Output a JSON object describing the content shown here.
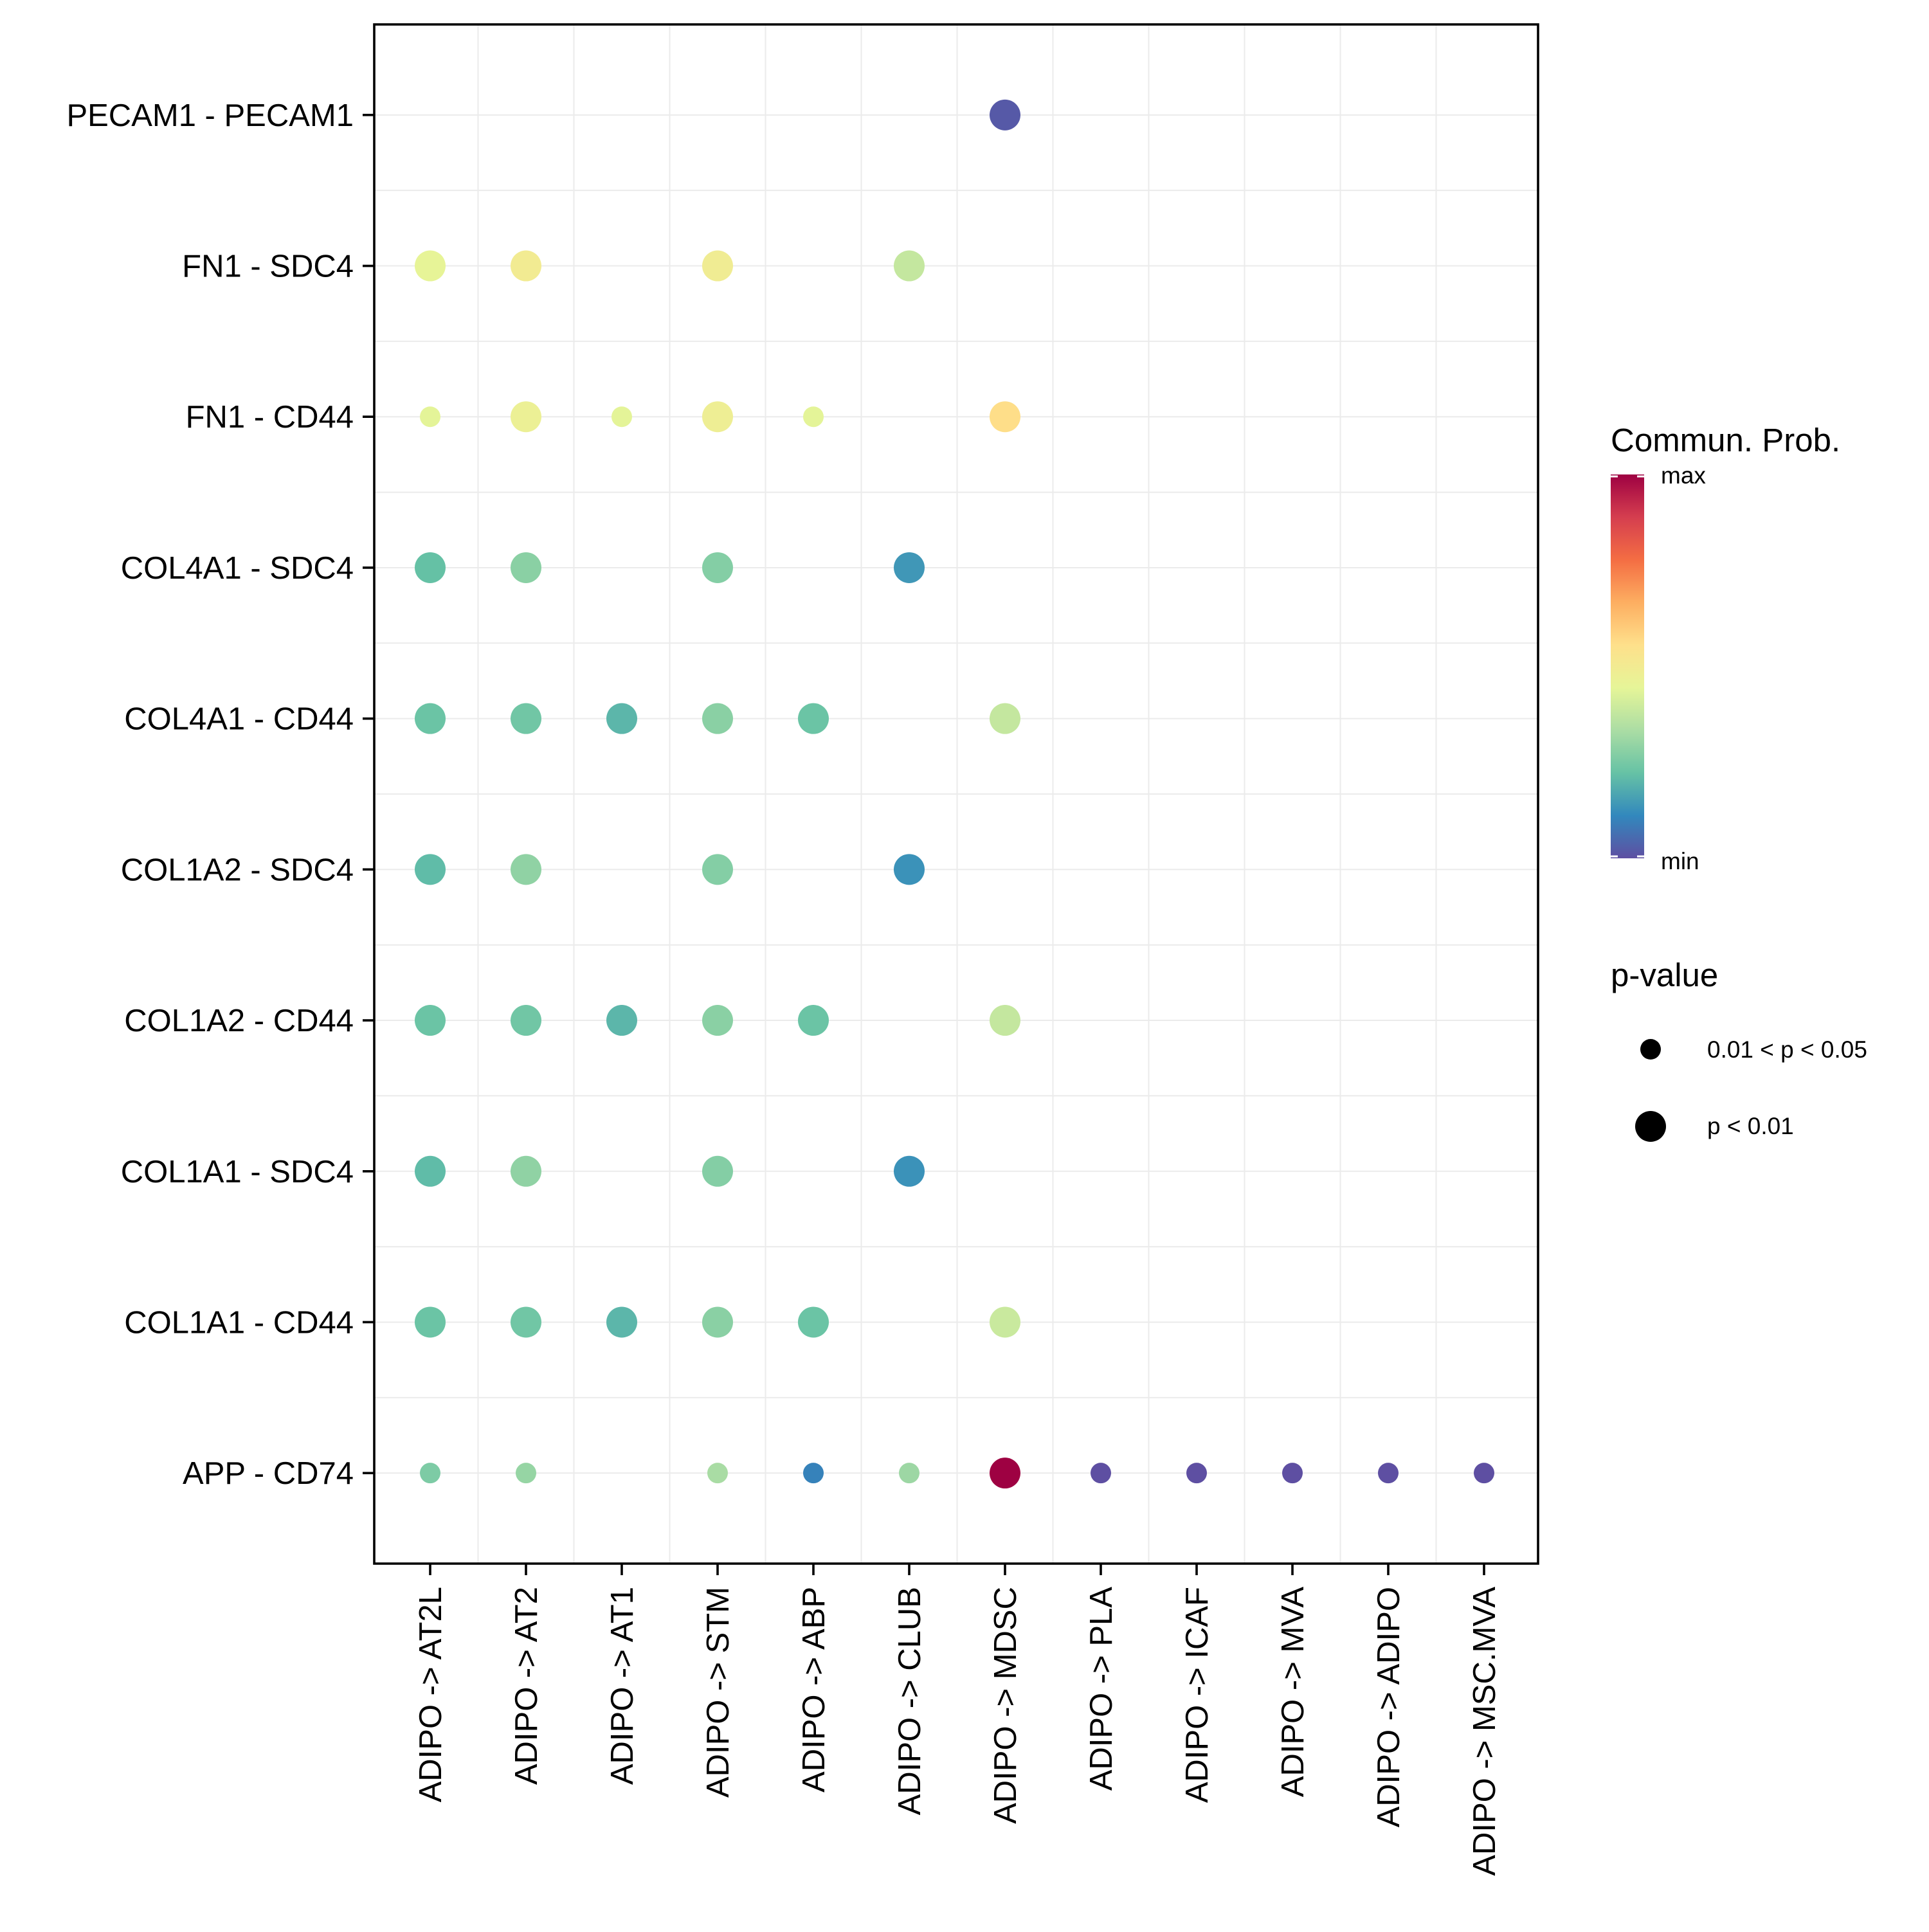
{
  "chart_data": {
    "type": "scatter",
    "subtype": "dot-plot",
    "title": "",
    "xlabel": "",
    "ylabel": "",
    "grid": true,
    "x_categories": [
      "ADIPO -> AT2L",
      "ADIPO -> AT2",
      "ADIPO -> AT1",
      "ADIPO -> STM",
      "ADIPO -> ABP",
      "ADIPO -> CLUB",
      "ADIPO -> MDSC",
      "ADIPO -> PLA",
      "ADIPO -> ICAF",
      "ADIPO -> MVA",
      "ADIPO -> ADIPO",
      "ADIPO -> MSC.MVA"
    ],
    "y_categories": [
      "PECAM1 - PECAM1",
      "FN1 - SDC4",
      "FN1 - CD44",
      "COL4A1 - SDC4",
      "COL4A1 - CD44",
      "COL1A2 - SDC4",
      "COL1A2 - CD44",
      "COL1A1 - SDC4",
      "COL1A1 - CD44",
      "APP - CD74"
    ],
    "points": [
      {
        "x": "ADIPO -> MDSC",
        "y": "PECAM1 - PECAM1",
        "prob": 0.02,
        "pval": "p < 0.01"
      },
      {
        "x": "ADIPO -> AT2L",
        "y": "FN1 - SDC4",
        "prob": 0.45,
        "pval": "p < 0.01"
      },
      {
        "x": "ADIPO -> AT2",
        "y": "FN1 - SDC4",
        "prob": 0.5,
        "pval": "p < 0.01"
      },
      {
        "x": "ADIPO -> STM",
        "y": "FN1 - SDC4",
        "prob": 0.49,
        "pval": "p < 0.01"
      },
      {
        "x": "ADIPO -> CLUB",
        "y": "FN1 - SDC4",
        "prob": 0.38,
        "pval": "p < 0.01"
      },
      {
        "x": "ADIPO -> AT2L",
        "y": "FN1 - CD44",
        "prob": 0.44,
        "pval": "0.01 < p < 0.05"
      },
      {
        "x": "ADIPO -> AT2",
        "y": "FN1 - CD44",
        "prob": 0.47,
        "pval": "p < 0.01"
      },
      {
        "x": "ADIPO -> AT1",
        "y": "FN1 - CD44",
        "prob": 0.44,
        "pval": "0.01 < p < 0.05"
      },
      {
        "x": "ADIPO -> STM",
        "y": "FN1 - CD44",
        "prob": 0.48,
        "pval": "p < 0.01"
      },
      {
        "x": "ADIPO -> ABP",
        "y": "FN1 - CD44",
        "prob": 0.44,
        "pval": "0.01 < p < 0.05"
      },
      {
        "x": "ADIPO -> MDSC",
        "y": "FN1 - CD44",
        "prob": 0.56,
        "pval": "p < 0.01"
      },
      {
        "x": "ADIPO -> AT2L",
        "y": "COL4A1 - SDC4",
        "prob": 0.22,
        "pval": "p < 0.01"
      },
      {
        "x": "ADIPO -> AT2",
        "y": "COL4A1 - SDC4",
        "prob": 0.28,
        "pval": "p < 0.01"
      },
      {
        "x": "ADIPO -> STM",
        "y": "COL4A1 - SDC4",
        "prob": 0.27,
        "pval": "p < 0.01"
      },
      {
        "x": "ADIPO -> CLUB",
        "y": "COL4A1 - SDC4",
        "prob": 0.14,
        "pval": "p < 0.01"
      },
      {
        "x": "ADIPO -> AT2L",
        "y": "COL4A1 - CD44",
        "prob": 0.23,
        "pval": "p < 0.01"
      },
      {
        "x": "ADIPO -> AT2",
        "y": "COL4A1 - CD44",
        "prob": 0.24,
        "pval": "p < 0.01"
      },
      {
        "x": "ADIPO -> AT1",
        "y": "COL4A1 - CD44",
        "prob": 0.2,
        "pval": "p < 0.01"
      },
      {
        "x": "ADIPO -> STM",
        "y": "COL4A1 - CD44",
        "prob": 0.28,
        "pval": "p < 0.01"
      },
      {
        "x": "ADIPO -> ABP",
        "y": "COL4A1 - CD44",
        "prob": 0.23,
        "pval": "p < 0.01"
      },
      {
        "x": "ADIPO -> MDSC",
        "y": "COL4A1 - CD44",
        "prob": 0.38,
        "pval": "p < 0.01"
      },
      {
        "x": "ADIPO -> AT2L",
        "y": "COL1A2 - SDC4",
        "prob": 0.21,
        "pval": "p < 0.01"
      },
      {
        "x": "ADIPO -> AT2",
        "y": "COL1A2 - SDC4",
        "prob": 0.29,
        "pval": "p < 0.01"
      },
      {
        "x": "ADIPO -> STM",
        "y": "COL1A2 - SDC4",
        "prob": 0.27,
        "pval": "p < 0.01"
      },
      {
        "x": "ADIPO -> CLUB",
        "y": "COL1A2 - SDC4",
        "prob": 0.13,
        "pval": "p < 0.01"
      },
      {
        "x": "ADIPO -> AT2L",
        "y": "COL1A2 - CD44",
        "prob": 0.23,
        "pval": "p < 0.01"
      },
      {
        "x": "ADIPO -> AT2",
        "y": "COL1A2 - CD44",
        "prob": 0.24,
        "pval": "p < 0.01"
      },
      {
        "x": "ADIPO -> AT1",
        "y": "COL1A2 - CD44",
        "prob": 0.2,
        "pval": "p < 0.01"
      },
      {
        "x": "ADIPO -> STM",
        "y": "COL1A2 - CD44",
        "prob": 0.28,
        "pval": "p < 0.01"
      },
      {
        "x": "ADIPO -> ABP",
        "y": "COL1A2 - CD44",
        "prob": 0.23,
        "pval": "p < 0.01"
      },
      {
        "x": "ADIPO -> MDSC",
        "y": "COL1A2 - CD44",
        "prob": 0.38,
        "pval": "p < 0.01"
      },
      {
        "x": "ADIPO -> AT2L",
        "y": "COL1A1 - SDC4",
        "prob": 0.21,
        "pval": "p < 0.01"
      },
      {
        "x": "ADIPO -> AT2",
        "y": "COL1A1 - SDC4",
        "prob": 0.29,
        "pval": "p < 0.01"
      },
      {
        "x": "ADIPO -> STM",
        "y": "COL1A1 - SDC4",
        "prob": 0.27,
        "pval": "p < 0.01"
      },
      {
        "x": "ADIPO -> CLUB",
        "y": "COL1A1 - SDC4",
        "prob": 0.13,
        "pval": "p < 0.01"
      },
      {
        "x": "ADIPO -> AT2L",
        "y": "COL1A1 - CD44",
        "prob": 0.23,
        "pval": "p < 0.01"
      },
      {
        "x": "ADIPO -> AT2",
        "y": "COL1A1 - CD44",
        "prob": 0.24,
        "pval": "p < 0.01"
      },
      {
        "x": "ADIPO -> AT1",
        "y": "COL1A1 - CD44",
        "prob": 0.2,
        "pval": "p < 0.01"
      },
      {
        "x": "ADIPO -> STM",
        "y": "COL1A1 - CD44",
        "prob": 0.28,
        "pval": "p < 0.01"
      },
      {
        "x": "ADIPO -> ABP",
        "y": "COL1A1 - CD44",
        "prob": 0.23,
        "pval": "p < 0.01"
      },
      {
        "x": "ADIPO -> MDSC",
        "y": "COL1A1 - CD44",
        "prob": 0.39,
        "pval": "p < 0.01"
      },
      {
        "x": "ADIPO -> AT2L",
        "y": "APP - CD74",
        "prob": 0.26,
        "pval": "0.01 < p < 0.05"
      },
      {
        "x": "ADIPO -> AT2",
        "y": "APP - CD74",
        "prob": 0.3,
        "pval": "0.01 < p < 0.05"
      },
      {
        "x": "ADIPO -> STM",
        "y": "APP - CD74",
        "prob": 0.33,
        "pval": "0.01 < p < 0.05"
      },
      {
        "x": "ADIPO -> ABP",
        "y": "APP - CD74",
        "prob": 0.1,
        "pval": "0.01 < p < 0.05"
      },
      {
        "x": "ADIPO -> CLUB",
        "y": "APP - CD74",
        "prob": 0.31,
        "pval": "0.01 < p < 0.05"
      },
      {
        "x": "ADIPO -> MDSC",
        "y": "APP - CD74",
        "prob": 1.0,
        "pval": "p < 0.01"
      },
      {
        "x": "ADIPO -> PLA",
        "y": "APP - CD74",
        "prob": 0.0,
        "pval": "0.01 < p < 0.05"
      },
      {
        "x": "ADIPO -> ICAF",
        "y": "APP - CD74",
        "prob": 0.0,
        "pval": "0.01 < p < 0.05"
      },
      {
        "x": "ADIPO -> MVA",
        "y": "APP - CD74",
        "prob": 0.0,
        "pval": "0.01 < p < 0.05"
      },
      {
        "x": "ADIPO -> ADIPO",
        "y": "APP - CD74",
        "prob": 0.0,
        "pval": "0.01 < p < 0.05"
      },
      {
        "x": "ADIPO -> MSC.MVA",
        "y": "APP - CD74",
        "prob": 0.0,
        "pval": "0.01 < p < 0.05"
      }
    ],
    "color_legend": {
      "title": "Commun. Prob.",
      "max_label": "max",
      "min_label": "min",
      "palette": [
        "#5E4FA2",
        "#3288BD",
        "#66C2A5",
        "#ABDDA4",
        "#E6F598",
        "#FEE08B",
        "#FDAE61",
        "#F46D43",
        "#D53E4F",
        "#9E0142"
      ]
    },
    "size_legend": {
      "title": "p-value",
      "entries": [
        "0.01 < p < 0.05",
        "p < 0.01"
      ]
    },
    "legend_position": "right"
  }
}
